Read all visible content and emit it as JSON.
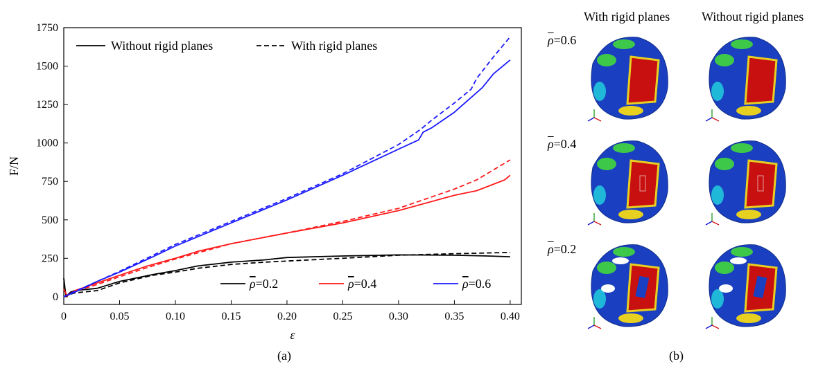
{
  "chart_data": {
    "type": "line",
    "xlabel": "ε",
    "ylabel": "F/N",
    "xlim": [
      0,
      0.41
    ],
    "ylim": [
      -50,
      1750
    ],
    "x_ticks": [
      "0",
      "0.05",
      "0.10",
      "0.15",
      "0.20",
      "0.25",
      "0.30",
      "0.35",
      "0.40"
    ],
    "x_tick_values": [
      0,
      0.05,
      0.1,
      0.15,
      0.2,
      0.25,
      0.3,
      0.35,
      0.4
    ],
    "y_ticks": [
      "0",
      "250",
      "500",
      "750",
      "1000",
      "1250",
      "1500",
      "1750"
    ],
    "y_tick_values": [
      0,
      250,
      500,
      750,
      1000,
      1250,
      1500,
      1750
    ],
    "style_legend": {
      "solid": "Without rigid planes",
      "dashed": "With rigid planes",
      "placement": "top-left"
    },
    "color_legend": {
      "placement": "bottom-right",
      "entries": [
        {
          "label": "=0.2",
          "color": "#000000"
        },
        {
          "label": "=0.4",
          "color": "#ff1a1a"
        },
        {
          "label": "=0.6",
          "color": "#1a1aff"
        }
      ]
    },
    "series": [
      {
        "color": "#000000",
        "style": "solid",
        "x": [
          0,
          0.002,
          0.006,
          0.01,
          0.03,
          0.05,
          0.08,
          0.1,
          0.12,
          0.15,
          0.18,
          0.2,
          0.25,
          0.3,
          0.35,
          0.38,
          0.4
        ],
        "y": [
          120,
          0,
          30,
          40,
          55,
          100,
          145,
          170,
          200,
          225,
          240,
          255,
          265,
          272,
          270,
          265,
          260
        ]
      },
      {
        "color": "#000000",
        "style": "dashed",
        "x": [
          0,
          0.005,
          0.01,
          0.03,
          0.05,
          0.08,
          0.1,
          0.12,
          0.15,
          0.18,
          0.2,
          0.25,
          0.3,
          0.35,
          0.4
        ],
        "y": [
          0,
          15,
          25,
          40,
          90,
          140,
          160,
          185,
          210,
          225,
          232,
          250,
          270,
          280,
          288
        ]
      },
      {
        "color": "#ff1a1a",
        "style": "solid",
        "x": [
          0,
          0.003,
          0.006,
          0.01,
          0.03,
          0.05,
          0.075,
          0.1,
          0.12,
          0.15,
          0.2,
          0.25,
          0.3,
          0.35,
          0.37,
          0.395,
          0.4
        ],
        "y": [
          50,
          5,
          20,
          40,
          90,
          140,
          200,
          250,
          295,
          345,
          415,
          480,
          560,
          660,
          690,
          760,
          790
        ]
      },
      {
        "color": "#ff1a1a",
        "style": "dashed",
        "x": [
          0,
          0.01,
          0.03,
          0.05,
          0.075,
          0.1,
          0.15,
          0.2,
          0.25,
          0.3,
          0.35,
          0.37,
          0.4
        ],
        "y": [
          0,
          35,
          80,
          130,
          190,
          245,
          345,
          415,
          490,
          575,
          700,
          760,
          890
        ]
      },
      {
        "color": "#1a1aff",
        "style": "solid",
        "x": [
          0,
          0.01,
          0.03,
          0.05,
          0.08,
          0.1,
          0.15,
          0.2,
          0.25,
          0.3,
          0.318,
          0.322,
          0.33,
          0.35,
          0.375,
          0.385,
          0.4
        ],
        "y": [
          0,
          30,
          100,
          160,
          260,
          330,
          480,
          630,
          790,
          960,
          1020,
          1070,
          1100,
          1200,
          1360,
          1450,
          1540
        ]
      },
      {
        "color": "#1a1aff",
        "style": "dashed",
        "x": [
          0,
          0.01,
          0.03,
          0.05,
          0.08,
          0.1,
          0.15,
          0.2,
          0.25,
          0.3,
          0.32,
          0.33,
          0.35,
          0.365,
          0.37,
          0.385,
          0.4
        ],
        "y": [
          0,
          35,
          100,
          165,
          270,
          340,
          490,
          640,
          800,
          990,
          1090,
          1150,
          1260,
          1350,
          1420,
          1560,
          1690
        ]
      }
    ]
  },
  "panel_labels": {
    "a": "(a)",
    "b": "(b)"
  },
  "right_panel": {
    "col_headers": [
      "With rigid planes",
      "Without rigid planes"
    ],
    "rows": [
      {
        "prefix": "ρ",
        "label": "=0.6"
      },
      {
        "prefix": "ρ",
        "label": "=0.4"
      },
      {
        "prefix": "ρ",
        "label": "=0.2"
      }
    ],
    "colors": {
      "red": "#c81010",
      "blue": "#1a3fc0",
      "green": "#3ec84a",
      "yellow": "#e8d020",
      "cyan": "#20b8d8"
    }
  }
}
